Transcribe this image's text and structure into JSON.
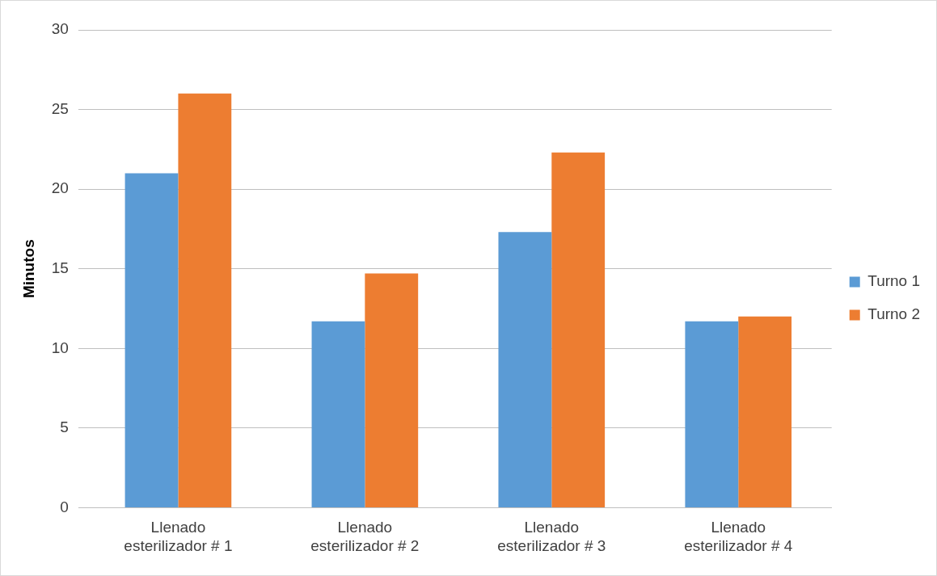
{
  "chart_data": {
    "type": "bar",
    "ylabel": "Minutos",
    "categories": [
      "Llenado\nesterilizador # 1",
      "Llenado\nesterilizador # 2",
      "Llenado\nesterilizador # 3",
      "Llenado\nesterilizador # 4"
    ],
    "series": [
      {
        "name": "Turno 1",
        "color": "#5b9bd5",
        "values": [
          21,
          11.7,
          17.3,
          11.7
        ]
      },
      {
        "name": "Turno 2",
        "color": "#ed7d31",
        "values": [
          26,
          14.7,
          22.3,
          12
        ]
      }
    ],
    "ylim": [
      0,
      30
    ],
    "yticks": [
      0,
      5,
      10,
      15,
      20,
      25,
      30
    ],
    "grid": "y",
    "legend": "right"
  }
}
